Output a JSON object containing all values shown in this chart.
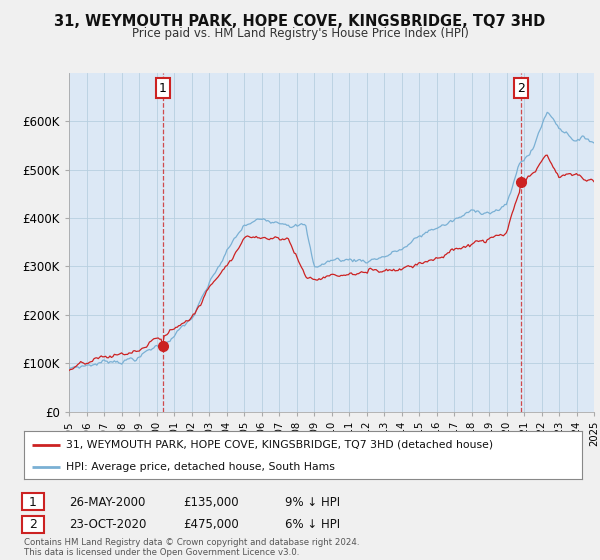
{
  "title": "31, WEYMOUTH PARK, HOPE COVE, KINGSBRIDGE, TQ7 3HD",
  "subtitle": "Price paid vs. HM Land Registry's House Price Index (HPI)",
  "legend_line1": "31, WEYMOUTH PARK, HOPE COVE, KINGSBRIDGE, TQ7 3HD (detached house)",
  "legend_line2": "HPI: Average price, detached house, South Hams",
  "transaction1_date": "26-MAY-2000",
  "transaction1_price": "£135,000",
  "transaction1_hpi": "9% ↓ HPI",
  "transaction2_date": "23-OCT-2020",
  "transaction2_price": "£475,000",
  "transaction2_hpi": "6% ↓ HPI",
  "footer": "Contains HM Land Registry data © Crown copyright and database right 2024.\nThis data is licensed under the Open Government Licence v3.0.",
  "red_color": "#cc2222",
  "blue_color": "#7ab0d4",
  "background_color": "#f0f0f0",
  "plot_background": "#dce8f5",
  "grid_color": "#b8cfe0",
  "ylim_min": 0,
  "ylim_max": 700000,
  "yticks": [
    0,
    100000,
    200000,
    300000,
    400000,
    500000,
    600000
  ],
  "ytick_labels": [
    "£0",
    "£100K",
    "£200K",
    "£300K",
    "£400K",
    "£500K",
    "£600K"
  ],
  "x_start_year": 1995,
  "x_end_year": 2025,
  "sale1_year": 2000.38,
  "sale1_price": 135000,
  "sale2_year": 2020.79,
  "sale2_price": 475000
}
